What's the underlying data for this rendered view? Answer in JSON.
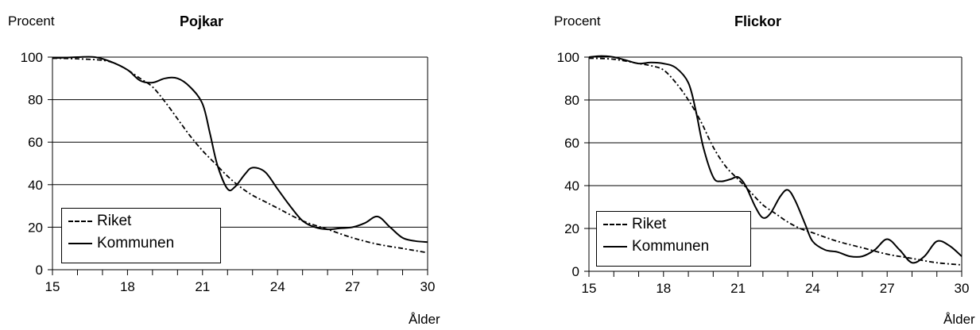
{
  "chart_data": [
    {
      "type": "line",
      "title": "Pojkar",
      "ylabel": "Procent",
      "xlabel": "Ålder",
      "xlim": [
        15,
        30
      ],
      "ylim": [
        0,
        100
      ],
      "xticks": [
        15,
        18,
        21,
        24,
        27,
        30
      ],
      "yticks": [
        0,
        20,
        40,
        60,
        80,
        100
      ],
      "grid": "horizontal",
      "legend_position": "bottom-left",
      "series": [
        {
          "name": "Riket",
          "style": "dash-dot",
          "x": [
            15,
            16,
            17,
            17.5,
            18,
            18.5,
            19,
            19.5,
            20,
            20.5,
            21,
            21.5,
            22,
            22.5,
            23,
            23.5,
            24,
            25,
            26,
            27,
            28,
            29,
            30
          ],
          "y": [
            99.5,
            99.2,
            98.5,
            97,
            94,
            90,
            86,
            79,
            71,
            63,
            56,
            50,
            44,
            39,
            35,
            32,
            29,
            23,
            19,
            15,
            12,
            10,
            8
          ]
        },
        {
          "name": "Kommunen",
          "style": "solid",
          "x": [
            15,
            16,
            16.7,
            17.3,
            18,
            18.5,
            19,
            19.5,
            20,
            20.5,
            21,
            21.3,
            21.6,
            22,
            22.3,
            22.7,
            23,
            23.5,
            24,
            24.5,
            25,
            25.5,
            26,
            26.5,
            27,
            27.5,
            28,
            28.5,
            29,
            29.5,
            30
          ],
          "y": [
            99.5,
            100,
            100,
            98,
            94,
            89,
            88,
            90,
            90,
            86,
            78,
            64,
            49,
            38,
            39,
            45,
            48,
            46,
            38,
            30,
            23,
            20,
            19,
            19.5,
            20,
            22,
            25,
            20,
            15,
            13.5,
            13
          ]
        }
      ]
    },
    {
      "type": "line",
      "title": "Flickor",
      "ylabel": "Procent",
      "xlabel": "Ålder",
      "xlim": [
        15,
        30
      ],
      "ylim": [
        0,
        100
      ],
      "xticks": [
        15,
        18,
        21,
        24,
        27,
        30
      ],
      "yticks": [
        0,
        20,
        40,
        60,
        80,
        100
      ],
      "grid": "horizontal",
      "legend_position": "bottom-left",
      "series": [
        {
          "name": "Riket",
          "style": "dash-dot",
          "x": [
            15,
            16,
            17,
            17.5,
            18,
            18.5,
            19,
            19.5,
            20,
            20.5,
            21,
            21.5,
            22,
            22.5,
            23,
            23.5,
            24,
            25,
            26,
            27,
            28,
            29,
            30
          ],
          "y": [
            99.5,
            99,
            97,
            96,
            94,
            88,
            80,
            70,
            58,
            49,
            43,
            37,
            31,
            27,
            23,
            20,
            18,
            14,
            11,
            8,
            6,
            4,
            3
          ]
        },
        {
          "name": "Kommunen",
          "style": "solid",
          "x": [
            15,
            15.5,
            16,
            16.5,
            17,
            17.5,
            18,
            18.5,
            19,
            19.3,
            19.6,
            20,
            20.3,
            20.7,
            21,
            21.3,
            21.7,
            22,
            22.3,
            22.7,
            23,
            23.3,
            23.7,
            24,
            24.5,
            25,
            25.5,
            26,
            26.5,
            27,
            27.5,
            28,
            28.5,
            29,
            29.5,
            30
          ],
          "y": [
            100,
            100.5,
            100,
            98.5,
            97,
            97.5,
            97,
            95,
            88,
            75,
            58,
            44,
            42,
            43,
            44,
            40,
            30,
            25,
            27,
            35,
            38,
            33,
            22,
            14,
            10,
            9,
            7,
            7,
            10,
            15,
            10,
            4,
            7,
            14,
            12,
            7
          ]
        }
      ]
    }
  ]
}
